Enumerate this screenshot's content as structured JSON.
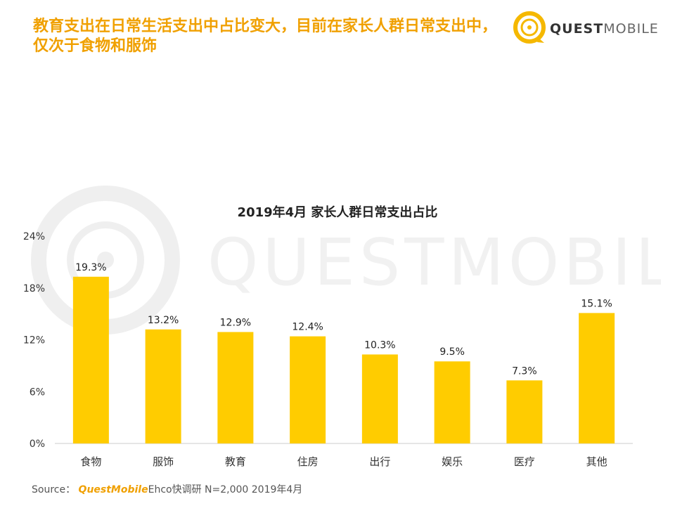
{
  "header": {
    "headline": "教育支出在日常生活支出中占比变大，目前在家长人群日常支出中，仅次于食物和服饰",
    "logo_light": "QUEST",
    "logo_bold": "MOBILE",
    "watermark_text": "QUESTMOBILE"
  },
  "colors": {
    "accent": "#f0a000",
    "bar": "#ffcc00",
    "logo_ring": "#f5b800"
  },
  "chart_data": {
    "type": "bar",
    "title": "2019年4月 家长人群日常支出占比",
    "categories": [
      "食物",
      "服饰",
      "教育",
      "住房",
      "出行",
      "娱乐",
      "医疗",
      "其他"
    ],
    "values": [
      19.3,
      13.2,
      12.9,
      12.4,
      10.3,
      9.5,
      7.3,
      15.1
    ],
    "value_labels": [
      "19.3%",
      "13.2%",
      "12.9%",
      "12.4%",
      "10.3%",
      "9.5%",
      "7.3%",
      "15.1%"
    ],
    "ylim": [
      0,
      24
    ],
    "yticks": [
      0,
      6,
      12,
      18,
      24
    ],
    "ytick_labels": [
      "0%",
      "6%",
      "12%",
      "18%",
      "24%"
    ],
    "xlabel": "",
    "ylabel": "",
    "grid": false,
    "legend": "none"
  },
  "footer": {
    "source_label": "Source：",
    "brand": "QuestMobile",
    "detail": "Ehco快调研 N=2,000 2019年4月"
  }
}
